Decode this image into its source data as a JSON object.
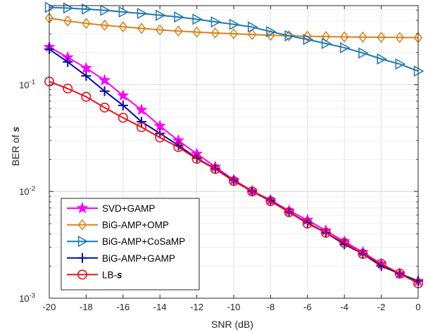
{
  "chart_data": {
    "type": "line",
    "xlabel": "SNR (dB)",
    "ylabel": {
      "prefix": "BER of ",
      "symbol": "s"
    },
    "xlim": [
      -20,
      0
    ],
    "ylim": [
      0.001,
      0.55
    ],
    "y_scale": "log",
    "grid": true,
    "legend_position": "bottom-left",
    "x_ticks": [
      -20,
      -18,
      -16,
      -14,
      -12,
      -10,
      -8,
      -6,
      -4,
      -2,
      0
    ],
    "y_ticks": [
      {
        "value": 0.001,
        "base": "10",
        "exp": "-3"
      },
      {
        "value": 0.01,
        "base": "10",
        "exp": "-2"
      },
      {
        "value": 0.1,
        "base": "10",
        "exp": "-1"
      }
    ],
    "x": [
      -20,
      -19,
      -18,
      -17,
      -16,
      -15,
      -14,
      -13,
      -12,
      -11,
      -10,
      -9,
      -8,
      -7,
      -6,
      -5,
      -4,
      -3,
      -2,
      -1,
      0
    ],
    "series": [
      {
        "name": "SVD+GAMP",
        "color": "#ff00ff",
        "marker": "star",
        "values": [
          0.225,
          0.18,
          0.143,
          0.11,
          0.079,
          0.058,
          0.041,
          0.03,
          0.0225,
          0.017,
          0.0128,
          0.0101,
          0.0083,
          0.0066,
          0.0054,
          0.0043,
          0.0034,
          0.0027,
          0.0021,
          0.0017,
          0.00145
        ]
      },
      {
        "name": "BiG-AMP+OMP",
        "color": "#d9821c",
        "marker": "diamond",
        "values": [
          0.42,
          0.395,
          0.375,
          0.36,
          0.348,
          0.337,
          0.326,
          0.318,
          0.311,
          0.305,
          0.3,
          0.295,
          0.29,
          0.287,
          0.284,
          0.282,
          0.28,
          0.279,
          0.278,
          0.277,
          0.276
        ]
      },
      {
        "name": "BiG-AMP+CoSaMP",
        "color": "#1f78b4",
        "marker": "triangle-right",
        "values": [
          0.53,
          0.522,
          0.51,
          0.497,
          0.48,
          0.465,
          0.447,
          0.43,
          0.41,
          0.387,
          0.367,
          0.347,
          0.314,
          0.287,
          0.265,
          0.243,
          0.222,
          0.198,
          0.174,
          0.156,
          0.134
        ]
      },
      {
        "name": "BiG-AMP+GAMP",
        "color": "#0a0aa0",
        "marker": "plus",
        "values": [
          0.215,
          0.163,
          0.121,
          0.087,
          0.064,
          0.045,
          0.035,
          0.027,
          0.0205,
          0.0163,
          0.0127,
          0.01,
          0.0082,
          0.0064,
          0.0051,
          0.0041,
          0.0032,
          0.0026,
          0.002,
          0.0017,
          0.00145
        ]
      },
      {
        "name": "LB-",
        "name_symbol": "s",
        "color": "#e8101e",
        "marker": "circle",
        "values": [
          0.107,
          0.092,
          0.077,
          0.061,
          0.049,
          0.04,
          0.032,
          0.026,
          0.0202,
          0.0162,
          0.0125,
          0.01,
          0.0081,
          0.0064,
          0.005,
          0.0041,
          0.0033,
          0.0026,
          0.0021,
          0.0017,
          0.00138
        ]
      }
    ]
  }
}
